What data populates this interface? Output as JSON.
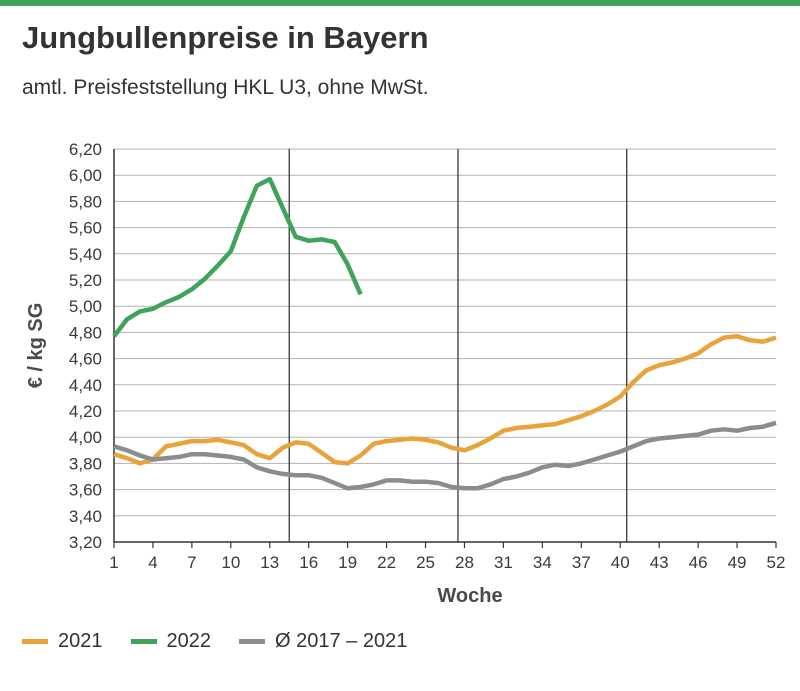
{
  "title": "Jungbullenpreise in Bayern",
  "subtitle": "amtl. Preisfeststellung HKL U3, ohne MwSt.",
  "chart_data": {
    "type": "line",
    "xlabel": "Woche",
    "ylabel": "€ / kg SG",
    "xlim": [
      1,
      52
    ],
    "ylim": [
      3.2,
      6.2
    ],
    "x_ticks": [
      1,
      4,
      7,
      10,
      13,
      16,
      19,
      22,
      25,
      28,
      31,
      34,
      37,
      40,
      43,
      46,
      49,
      52
    ],
    "y_ticks": [
      "3,20",
      "3,40",
      "3,60",
      "3,80",
      "4,00",
      "4,20",
      "4,40",
      "4,60",
      "4,80",
      "5,00",
      "5,20",
      "5,40",
      "5,60",
      "5,80",
      "6,00",
      "6,20"
    ],
    "y_tick_values": [
      3.2,
      3.4,
      3.6,
      3.8,
      4.0,
      4.2,
      4.4,
      4.6,
      4.8,
      5.0,
      5.2,
      5.4,
      5.6,
      5.8,
      6.0,
      6.2
    ],
    "vertical_gridlines_at": [
      14.5,
      27.5,
      40.5
    ],
    "grid": "horizontal",
    "legend_position": "bottom",
    "series": [
      {
        "name": "2021",
        "color": "#e8a33a",
        "x": [
          1,
          2,
          3,
          4,
          5,
          6,
          7,
          8,
          9,
          10,
          11,
          12,
          13,
          14,
          15,
          16,
          17,
          18,
          19,
          20,
          21,
          22,
          23,
          24,
          25,
          26,
          27,
          28,
          29,
          30,
          31,
          32,
          33,
          34,
          35,
          36,
          37,
          38,
          39,
          40,
          41,
          42,
          43,
          44,
          45,
          46,
          47,
          48,
          49,
          50,
          51,
          52
        ],
        "y": [
          3.87,
          3.84,
          3.8,
          3.83,
          3.93,
          3.95,
          3.97,
          3.97,
          3.98,
          3.96,
          3.94,
          3.87,
          3.84,
          3.92,
          3.96,
          3.95,
          3.88,
          3.81,
          3.8,
          3.86,
          3.95,
          3.97,
          3.98,
          3.99,
          3.98,
          3.96,
          3.92,
          3.9,
          3.94,
          3.99,
          4.05,
          4.07,
          4.08,
          4.09,
          4.1,
          4.13,
          4.16,
          4.2,
          4.25,
          4.31,
          4.42,
          4.51,
          4.55,
          4.57,
          4.6,
          4.64,
          4.71,
          4.76,
          4.77,
          4.74,
          4.73,
          4.76
        ]
      },
      {
        "name": "2022",
        "color": "#3fa35b",
        "x": [
          1,
          2,
          3,
          4,
          5,
          6,
          7,
          8,
          9,
          10,
          11,
          12,
          13,
          14,
          15,
          16,
          17,
          18,
          19,
          20
        ],
        "y": [
          4.77,
          4.9,
          4.96,
          4.98,
          5.03,
          5.07,
          5.13,
          5.21,
          5.31,
          5.42,
          5.68,
          5.92,
          5.97,
          5.75,
          5.53,
          5.5,
          5.51,
          5.49,
          5.32,
          5.09
        ]
      },
      {
        "name": "Ø 2017 – 2021",
        "color": "#8c8c8c",
        "x": [
          1,
          2,
          3,
          4,
          5,
          6,
          7,
          8,
          9,
          10,
          11,
          12,
          13,
          14,
          15,
          16,
          17,
          18,
          19,
          20,
          21,
          22,
          23,
          24,
          25,
          26,
          27,
          28,
          29,
          30,
          31,
          32,
          33,
          34,
          35,
          36,
          37,
          38,
          39,
          40,
          41,
          42,
          43,
          44,
          45,
          46,
          47,
          48,
          49,
          50,
          51,
          52
        ],
        "y": [
          3.93,
          3.9,
          3.86,
          3.83,
          3.84,
          3.85,
          3.87,
          3.87,
          3.86,
          3.85,
          3.83,
          3.77,
          3.74,
          3.72,
          3.71,
          3.71,
          3.69,
          3.65,
          3.61,
          3.62,
          3.64,
          3.67,
          3.67,
          3.66,
          3.66,
          3.65,
          3.62,
          3.61,
          3.61,
          3.64,
          3.68,
          3.7,
          3.73,
          3.77,
          3.79,
          3.78,
          3.8,
          3.83,
          3.86,
          3.89,
          3.93,
          3.97,
          3.99,
          4.0,
          4.01,
          4.02,
          4.05,
          4.06,
          4.05,
          4.07,
          4.08,
          4.11
        ]
      }
    ]
  }
}
